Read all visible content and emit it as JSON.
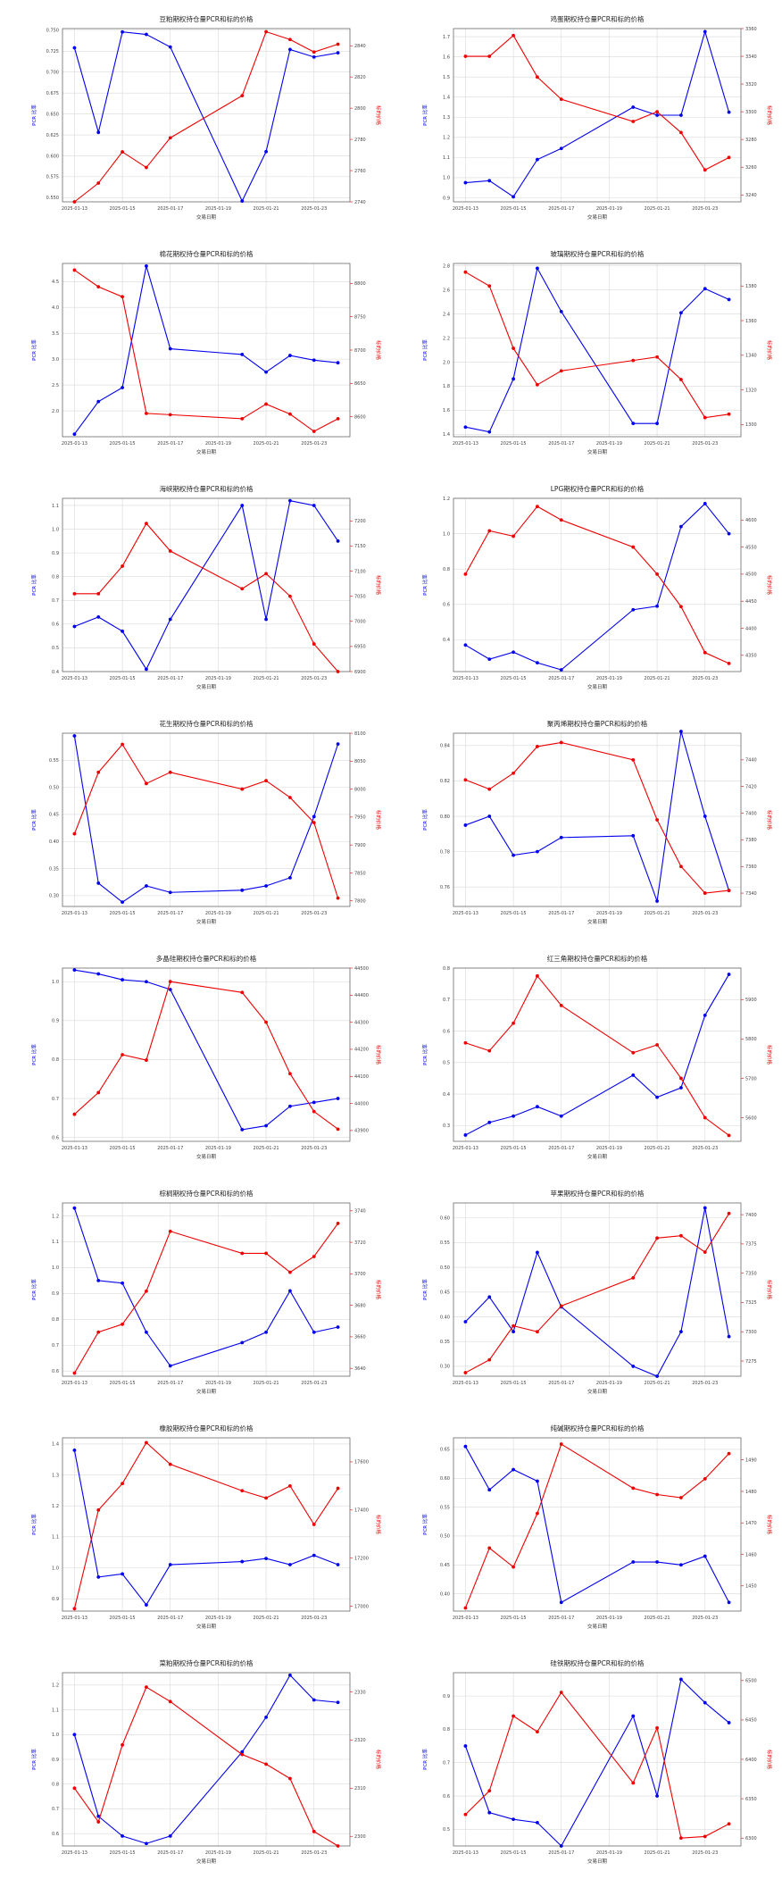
{
  "colors": {
    "left_series": "#0000ee",
    "right_series": "#ee0000",
    "grid": "#d9d9d9",
    "axes": "#555555"
  },
  "x_ticks": [
    "2025-01-13",
    "2025-01-15",
    "2025-01-17",
    "2025-01-19",
    "2025-01-21",
    "2025-01-23"
  ],
  "x_label": "交易日期",
  "y_left_label": "PCR 比率",
  "y_right_label": "标的价格",
  "chart_data": [
    {
      "type": "line",
      "title": "豆粕期权持仓量PCR和标的价格",
      "left_ticks": [
        "0.550",
        "0.575",
        "0.600",
        "0.625",
        "0.650",
        "0.675",
        "0.700",
        "0.725",
        "0.750"
      ],
      "right_ticks": [
        "2740",
        "2760",
        "2780",
        "2800",
        "2820",
        "2840"
      ],
      "ylim_left": [
        0.545,
        0.752
      ],
      "ylim_right": [
        2740,
        2851
      ],
      "x": [
        "2025-01-13",
        "2025-01-14",
        "2025-01-15",
        "2025-01-16",
        "2025-01-17",
        "2025-01-20",
        "2025-01-21",
        "2025-01-22",
        "2025-01-23",
        "2025-01-24"
      ],
      "series": [
        {
          "values": [
            0.729,
            0.628,
            0.748,
            0.745,
            0.73,
            0.546,
            0.605,
            0.727,
            0.718,
            0.723
          ]
        },
        {
          "values": [
            2740,
            2752,
            2772,
            2762,
            2781,
            2808,
            2849,
            2844,
            2836,
            2841
          ]
        }
      ],
      "grid": true,
      "legend": "none"
    },
    {
      "type": "line",
      "title": "鸡蛋期权持仓量PCR和标的价格",
      "left_ticks": [
        "0.9",
        "1.0",
        "1.1",
        "1.2",
        "1.3",
        "1.4",
        "1.5",
        "1.6",
        "1.7"
      ],
      "right_ticks": [
        "3240",
        "3260",
        "3280",
        "3300",
        "3320",
        "3340",
        "3360"
      ],
      "ylim_left": [
        0.88,
        1.74
      ],
      "ylim_right": [
        3235,
        3360
      ],
      "x": [
        "2025-01-13",
        "2025-01-14",
        "2025-01-15",
        "2025-01-16",
        "2025-01-17",
        "2025-01-20",
        "2025-01-21",
        "2025-01-22",
        "2025-01-23",
        "2025-01-24"
      ],
      "series": [
        {
          "values": [
            0.975,
            0.985,
            0.905,
            1.09,
            1.145,
            1.35,
            1.31,
            1.31,
            1.725,
            1.325
          ]
        },
        {
          "values": [
            3340,
            3340,
            3355,
            3325,
            3309,
            3293,
            3300,
            3285,
            3258,
            3267
          ]
        }
      ],
      "grid": true,
      "legend": "none"
    },
    {
      "type": "line",
      "title": "棉花期权持仓量PCR和标的价格",
      "left_ticks": [
        "2.0",
        "2.5",
        "3.0",
        "3.5",
        "4.0",
        "4.5"
      ],
      "right_ticks": [
        "8600",
        "8650",
        "8700",
        "8750",
        "8800"
      ],
      "ylim_left": [
        1.5,
        4.85
      ],
      "ylim_right": [
        8570,
        8830
      ],
      "x": [
        "2025-01-13",
        "2025-01-14",
        "2025-01-15",
        "2025-01-16",
        "2025-01-17",
        "2025-01-20",
        "2025-01-21",
        "2025-01-22",
        "2025-01-23",
        "2025-01-24"
      ],
      "series": [
        {
          "values": [
            1.55,
            2.18,
            2.45,
            4.8,
            3.2,
            3.09,
            2.75,
            3.07,
            2.98,
            2.93
          ]
        },
        {
          "values": [
            8820,
            8795,
            8780,
            8605,
            8603,
            8597,
            8619,
            8604,
            8578,
            8597
          ]
        }
      ],
      "grid": true,
      "legend": "none"
    },
    {
      "type": "line",
      "title": "玻璃期权持仓量PCR和标的价格",
      "left_ticks": [
        "1.4",
        "1.6",
        "1.8",
        "2.0",
        "2.2",
        "2.4",
        "2.6",
        "2.8"
      ],
      "right_ticks": [
        "1300",
        "1320",
        "1340",
        "1360",
        "1380"
      ],
      "ylim_left": [
        1.38,
        2.82
      ],
      "ylim_right": [
        1293,
        1393
      ],
      "x": [
        "2025-01-13",
        "2025-01-14",
        "2025-01-15",
        "2025-01-16",
        "2025-01-17",
        "2025-01-20",
        "2025-01-21",
        "2025-01-22",
        "2025-01-23",
        "2025-01-24"
      ],
      "series": [
        {
          "values": [
            1.46,
            1.42,
            1.86,
            2.78,
            2.42,
            1.49,
            1.49,
            2.41,
            2.61,
            2.52
          ]
        },
        {
          "values": [
            1388,
            1380,
            1344,
            1323,
            1331,
            1337,
            1339,
            1326,
            1304,
            1306
          ]
        }
      ],
      "grid": true,
      "legend": "none"
    },
    {
      "type": "line",
      "title": "海峡期权持仓量PCR和标的价格",
      "left_ticks": [
        "0.4",
        "0.5",
        "0.6",
        "0.7",
        "0.8",
        "0.9",
        "1.0",
        "1.1"
      ],
      "right_ticks": [
        "6900",
        "6950",
        "7000",
        "7050",
        "7100",
        "7150",
        "7200"
      ],
      "ylim_left": [
        0.4,
        1.13
      ],
      "ylim_right": [
        6900,
        7245
      ],
      "x": [
        "2025-01-13",
        "2025-01-14",
        "2025-01-15",
        "2025-01-16",
        "2025-01-17",
        "2025-01-20",
        "2025-01-21",
        "2025-01-22",
        "2025-01-23",
        "2025-01-24"
      ],
      "series": [
        {
          "values": [
            0.59,
            0.63,
            0.57,
            0.41,
            0.62,
            1.1,
            0.62,
            1.12,
            1.1,
            0.95
          ]
        },
        {
          "values": [
            7055,
            7055,
            7110,
            7195,
            7140,
            7065,
            7095,
            7050,
            6955,
            6900
          ]
        }
      ],
      "grid": true,
      "legend": "none"
    },
    {
      "type": "line",
      "title": "LPG期权持仓量PCR和标的价格",
      "left_ticks": [
        "0.2",
        "0.4",
        "0.6",
        "0.8",
        "1.0",
        "1.2"
      ],
      "right_ticks": [
        "4350",
        "4400",
        "4450",
        "4500",
        "4550",
        "4600"
      ],
      "ylim_left": [
        0.22,
        1.2
      ],
      "ylim_right": [
        4320,
        4640
      ],
      "x": [
        "2025-01-13",
        "2025-01-14",
        "2025-01-15",
        "2025-01-16",
        "2025-01-17",
        "2025-01-20",
        "2025-01-21",
        "2025-01-22",
        "2025-01-23",
        "2025-01-24"
      ],
      "series": [
        {
          "values": [
            0.37,
            0.29,
            0.33,
            0.27,
            0.23,
            0.57,
            0.59,
            1.04,
            1.17,
            1.0
          ]
        },
        {
          "values": [
            4500,
            4580,
            4570,
            4625,
            4600,
            4550,
            4500,
            4440,
            4355,
            4335
          ]
        }
      ],
      "grid": true,
      "legend": "none"
    },
    {
      "type": "line",
      "title": "花生期权持仓量PCR和标的价格",
      "left_ticks": [
        "0.30",
        "0.35",
        "0.40",
        "0.45",
        "0.50",
        "0.55"
      ],
      "right_ticks": [
        "7800",
        "7850",
        "7900",
        "7950",
        "8000",
        "8050",
        "8100"
      ],
      "ylim_left": [
        0.28,
        0.6
      ],
      "ylim_right": [
        7790,
        8100
      ],
      "x": [
        "2025-01-13",
        "2025-01-14",
        "2025-01-15",
        "2025-01-16",
        "2025-01-17",
        "2025-01-20",
        "2025-01-21",
        "2025-01-22",
        "2025-01-23",
        "2025-01-24"
      ],
      "series": [
        {
          "values": [
            0.595,
            0.323,
            0.288,
            0.318,
            0.306,
            0.31,
            0.318,
            0.333,
            0.446,
            0.58
          ]
        },
        {
          "values": [
            7920,
            8030,
            8080,
            8010,
            8030,
            8000,
            8015,
            7985,
            7940,
            7805
          ]
        }
      ],
      "grid": true,
      "legend": "none"
    },
    {
      "type": "line",
      "title": "聚丙烯期权持仓量PCR和标的价格",
      "left_ticks": [
        "0.76",
        "0.78",
        "0.80",
        "0.82",
        "0.84"
      ],
      "right_ticks": [
        "7340",
        "7360",
        "7380",
        "7400",
        "7420",
        "7440"
      ],
      "ylim_left": [
        0.749,
        0.847
      ],
      "ylim_right": [
        7330,
        7460
      ],
      "x": [
        "2025-01-13",
        "2025-01-14",
        "2025-01-15",
        "2025-01-16",
        "2025-01-17",
        "2025-01-20",
        "2025-01-21",
        "2025-01-22",
        "2025-01-23",
        "2025-01-24"
      ],
      "series": [
        {
          "values": [
            0.795,
            0.8,
            0.778,
            0.78,
            0.788,
            0.789,
            0.752,
            0.848,
            0.8,
            0.758
          ]
        },
        {
          "values": [
            7425,
            7418,
            7430,
            7450,
            7453,
            7440,
            7395,
            7360,
            7340,
            7342
          ]
        }
      ],
      "grid": true,
      "legend": "none"
    },
    {
      "type": "line",
      "title": "多晶硅期权持仓量PCR和标的价格",
      "left_ticks": [
        "0.6",
        "0.7",
        "0.8",
        "0.9",
        "1.0"
      ],
      "right_ticks": [
        "43900",
        "44000",
        "44100",
        "44200",
        "44300",
        "44400",
        "44500"
      ],
      "ylim_left": [
        0.59,
        1.035
      ],
      "ylim_right": [
        43860,
        44500
      ],
      "x": [
        "2025-01-13",
        "2025-01-14",
        "2025-01-15",
        "2025-01-16",
        "2025-01-17",
        "2025-01-20",
        "2025-01-21",
        "2025-01-22",
        "2025-01-23",
        "2025-01-24"
      ],
      "series": [
        {
          "values": [
            1.03,
            1.02,
            1.005,
            1.0,
            0.98,
            0.62,
            0.63,
            0.68,
            0.69,
            0.7
          ]
        },
        {
          "values": [
            43960,
            44040,
            44180,
            44160,
            44450,
            44410,
            44300,
            44110,
            43970,
            43905
          ]
        }
      ],
      "grid": true,
      "legend": "none"
    },
    {
      "type": "line",
      "title": "红三角期权持仓量PCR和标的价格",
      "left_ticks": [
        "0.3",
        "0.4",
        "0.5",
        "0.6",
        "0.7",
        "0.8"
      ],
      "right_ticks": [
        "5600",
        "5700",
        "5800",
        "5900"
      ],
      "ylim_left": [
        0.25,
        0.8
      ],
      "ylim_right": [
        5540,
        5980
      ],
      "x": [
        "2025-01-13",
        "2025-01-14",
        "2025-01-15",
        "2025-01-16",
        "2025-01-17",
        "2025-01-20",
        "2025-01-21",
        "2025-01-22",
        "2025-01-23",
        "2025-01-24"
      ],
      "series": [
        {
          "values": [
            0.27,
            0.31,
            0.33,
            0.36,
            0.33,
            0.46,
            0.39,
            0.42,
            0.65,
            0.78
          ]
        },
        {
          "values": [
            5790,
            5770,
            5840,
            5960,
            5885,
            5765,
            5785,
            5700,
            5600,
            5555
          ]
        }
      ],
      "grid": true,
      "legend": "none"
    },
    {
      "type": "line",
      "title": "棕榈期权持仓量PCR和标的价格",
      "left_ticks": [
        "0.6",
        "0.7",
        "0.8",
        "0.9",
        "1.0",
        "1.1",
        "1.2"
      ],
      "right_ticks": [
        "3640",
        "3660",
        "3680",
        "3700",
        "3720",
        "3740"
      ],
      "ylim_left": [
        0.58,
        1.25
      ],
      "ylim_right": [
        3635,
        3745
      ],
      "x": [
        "2025-01-13",
        "2025-01-14",
        "2025-01-15",
        "2025-01-16",
        "2025-01-17",
        "2025-01-20",
        "2025-01-21",
        "2025-01-22",
        "2025-01-23",
        "2025-01-24"
      ],
      "series": [
        {
          "values": [
            1.23,
            0.95,
            0.94,
            0.75,
            0.62,
            0.71,
            0.75,
            0.91,
            0.75,
            0.77
          ]
        },
        {
          "values": [
            3637,
            3663,
            3668,
            3689,
            3727,
            3713,
            3713,
            3701,
            3711,
            3732
          ]
        }
      ],
      "grid": true,
      "legend": "none"
    },
    {
      "type": "line",
      "title": "苹果期权持仓量PCR和标的价格",
      "left_ticks": [
        "0.30",
        "0.35",
        "0.40",
        "0.45",
        "0.50",
        "0.55",
        "0.60"
      ],
      "right_ticks": [
        "7275",
        "7300",
        "7325",
        "7350",
        "7375",
        "7400"
      ],
      "ylim_left": [
        0.28,
        0.63
      ],
      "ylim_right": [
        7262,
        7410
      ],
      "x": [
        "2025-01-13",
        "2025-01-14",
        "2025-01-15",
        "2025-01-16",
        "2025-01-17",
        "2025-01-20",
        "2025-01-21",
        "2025-01-22",
        "2025-01-23",
        "2025-01-24"
      ],
      "series": [
        {
          "values": [
            0.39,
            0.44,
            0.37,
            0.53,
            0.42,
            0.3,
            0.28,
            0.37,
            0.62,
            0.36
          ]
        },
        {
          "values": [
            7265,
            7276,
            7305,
            7300,
            7322,
            7346,
            7380,
            7382,
            7368,
            7401
          ]
        }
      ],
      "grid": true,
      "legend": "none"
    },
    {
      "type": "line",
      "title": "橡胶期权持仓量PCR和标的价格",
      "left_ticks": [
        "0.9",
        "1.0",
        "1.1",
        "1.2",
        "1.3",
        "1.4"
      ],
      "right_ticks": [
        "17000",
        "17200",
        "17400",
        "17600"
      ],
      "ylim_left": [
        0.86,
        1.42
      ],
      "ylim_right": [
        16980,
        17700
      ],
      "x": [
        "2025-01-13",
        "2025-01-14",
        "2025-01-15",
        "2025-01-16",
        "2025-01-17",
        "2025-01-20",
        "2025-01-21",
        "2025-01-22",
        "2025-01-23",
        "2025-01-24"
      ],
      "series": [
        {
          "values": [
            1.38,
            0.97,
            0.98,
            0.88,
            1.01,
            1.02,
            1.03,
            1.01,
            1.04,
            1.01
          ]
        },
        {
          "values": [
            16990,
            17400,
            17510,
            17680,
            17590,
            17480,
            17450,
            17500,
            17340,
            17490
          ]
        }
      ],
      "grid": true,
      "legend": "none"
    },
    {
      "type": "line",
      "title": "纯碱期权持仓量PCR和标的价格",
      "left_ticks": [
        "0.40",
        "0.45",
        "0.50",
        "0.55",
        "0.60",
        "0.65"
      ],
      "right_ticks": [
        "1450",
        "1460",
        "1470",
        "1480",
        "1490"
      ],
      "ylim_left": [
        0.37,
        0.67
      ],
      "ylim_right": [
        1442,
        1497
      ],
      "x": [
        "2025-01-13",
        "2025-01-14",
        "2025-01-15",
        "2025-01-16",
        "2025-01-17",
        "2025-01-20",
        "2025-01-21",
        "2025-01-22",
        "2025-01-23",
        "2025-01-24"
      ],
      "series": [
        {
          "values": [
            0.655,
            0.58,
            0.615,
            0.595,
            0.385,
            0.455,
            0.455,
            0.45,
            0.465,
            0.385
          ]
        },
        {
          "values": [
            1443,
            1462,
            1456,
            1473,
            1495,
            1481,
            1479,
            1478,
            1484,
            1492
          ]
        }
      ],
      "grid": true,
      "legend": "none"
    },
    {
      "type": "line",
      "title": "菜粕期权持仓量PCR和标的价格",
      "left_ticks": [
        "0.6",
        "0.7",
        "0.8",
        "0.9",
        "1.0",
        "1.1",
        "1.2"
      ],
      "right_ticks": [
        "2300",
        "2310",
        "2320",
        "2330"
      ],
      "ylim_left": [
        0.55,
        1.25
      ],
      "ylim_right": [
        2298,
        2334
      ],
      "x": [
        "2025-01-13",
        "2025-01-14",
        "2025-01-15",
        "2025-01-16",
        "2025-01-17",
        "2025-01-20",
        "2025-01-21",
        "2025-01-22",
        "2025-01-23",
        "2025-01-24"
      ],
      "series": [
        {
          "values": [
            1.0,
            0.67,
            0.59,
            0.56,
            0.59,
            0.93,
            1.07,
            1.24,
            1.14,
            1.13
          ]
        },
        {
          "values": [
            2310,
            2303,
            2319,
            2331,
            2328,
            2317,
            2315,
            2312,
            2301,
            2298
          ]
        }
      ],
      "grid": true,
      "legend": "none"
    },
    {
      "type": "line",
      "title": "硅铁期权持仓量PCR和标的价格",
      "left_ticks": [
        "0.5",
        "0.6",
        "0.7",
        "0.8",
        "0.9"
      ],
      "right_ticks": [
        "6300",
        "6350",
        "6400",
        "6450",
        "6500"
      ],
      "ylim_left": [
        0.45,
        0.97
      ],
      "ylim_right": [
        6290,
        6510
      ],
      "x": [
        "2025-01-13",
        "2025-01-14",
        "2025-01-15",
        "2025-01-16",
        "2025-01-17",
        "2025-01-20",
        "2025-01-21",
        "2025-01-22",
        "2025-01-23",
        "2025-01-24"
      ],
      "series": [
        {
          "values": [
            0.75,
            0.55,
            0.53,
            0.52,
            0.45,
            0.84,
            0.6,
            0.95,
            0.88,
            0.82
          ]
        },
        {
          "values": [
            6330,
            6360,
            6455,
            6435,
            6485,
            6370,
            6440,
            6300,
            6302,
            6318
          ]
        }
      ],
      "grid": true,
      "legend": "none"
    }
  ]
}
